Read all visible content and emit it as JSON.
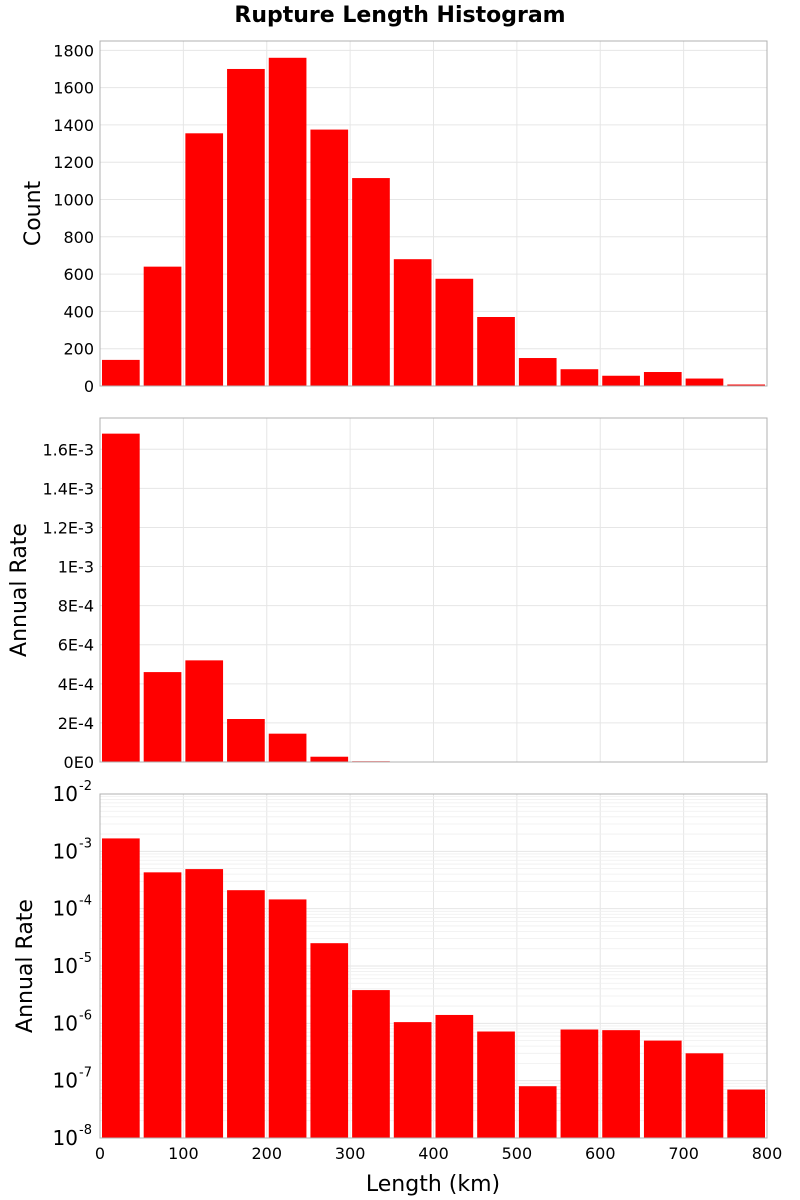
{
  "chart_data": {
    "type": "bar",
    "title": "Rupture Length Histogram",
    "xlabel": "Length (km)",
    "xlim": [
      0,
      800
    ],
    "bin_width": 50,
    "bin_centers": [
      25,
      75,
      125,
      175,
      225,
      275,
      325,
      375,
      425,
      475,
      525,
      575,
      625,
      675,
      725,
      775
    ],
    "x_ticks": [
      "0",
      "100",
      "200",
      "300",
      "400",
      "500",
      "600",
      "700",
      "800"
    ],
    "colors": {
      "bar": "#ff0000",
      "frame": "#b0b0b0",
      "grid": "#e6e6e6"
    },
    "panels": [
      {
        "name": "count",
        "ylabel": "Count",
        "scale": "linear",
        "ylim": [
          0,
          1850
        ],
        "y_ticks": [
          {
            "value": 0,
            "label": "0"
          },
          {
            "value": 200,
            "label": "200"
          },
          {
            "value": 400,
            "label": "400"
          },
          {
            "value": 600,
            "label": "600"
          },
          {
            "value": 800,
            "label": "800"
          },
          {
            "value": 1000,
            "label": "1000"
          },
          {
            "value": 1200,
            "label": "1200"
          },
          {
            "value": 1400,
            "label": "1400"
          },
          {
            "value": 1600,
            "label": "1600"
          },
          {
            "value": 1800,
            "label": "1800"
          }
        ],
        "values": [
          140,
          640,
          1355,
          1700,
          1760,
          1375,
          1115,
          680,
          575,
          370,
          150,
          90,
          55,
          75,
          40,
          8
        ]
      },
      {
        "name": "annual-rate-linear",
        "ylabel": "Annual Rate",
        "scale": "linear",
        "ylim": [
          0,
          0.00176
        ],
        "y_ticks": [
          {
            "value": 0,
            "label": "0E0"
          },
          {
            "value": 0.0002,
            "label": "2E-4"
          },
          {
            "value": 0.0004,
            "label": "4E-4"
          },
          {
            "value": 0.0006,
            "label": "6E-4"
          },
          {
            "value": 0.0008,
            "label": "8E-4"
          },
          {
            "value": 0.001,
            "label": "1E-3"
          },
          {
            "value": 0.0012,
            "label": "1.2E-3"
          },
          {
            "value": 0.0014,
            "label": "1.4E-3"
          },
          {
            "value": 0.0016,
            "label": "1.6E-3"
          }
        ],
        "values": [
          0.00168,
          0.00046,
          0.00052,
          0.00022,
          0.000145,
          2.7e-05,
          3.8e-06,
          1e-06,
          1.4e-06,
          7e-07,
          8e-08,
          7.5e-07,
          7.2e-07,
          5e-07,
          3e-07,
          7e-08
        ]
      },
      {
        "name": "annual-rate-log",
        "ylabel": "Annual Rate",
        "scale": "log",
        "ylim": [
          1e-08,
          0.01
        ],
        "y_ticks": [
          {
            "exp": -8,
            "base": "10",
            "sup": "-8"
          },
          {
            "exp": -7,
            "base": "10",
            "sup": "-7"
          },
          {
            "exp": -6,
            "base": "10",
            "sup": "-6"
          },
          {
            "exp": -5,
            "base": "10",
            "sup": "-5"
          },
          {
            "exp": -4,
            "base": "10",
            "sup": "-4"
          },
          {
            "exp": -3,
            "base": "10",
            "sup": "-3"
          },
          {
            "exp": -2,
            "base": "10",
            "sup": "-2"
          }
        ],
        "values": [
          0.00168,
          0.00043,
          0.00049,
          0.00021,
          0.000145,
          2.5e-05,
          3.8e-06,
          1.05e-06,
          1.4e-06,
          7.2e-07,
          8e-08,
          7.8e-07,
          7.6e-07,
          5e-07,
          3e-07,
          7e-08
        ]
      }
    ]
  }
}
